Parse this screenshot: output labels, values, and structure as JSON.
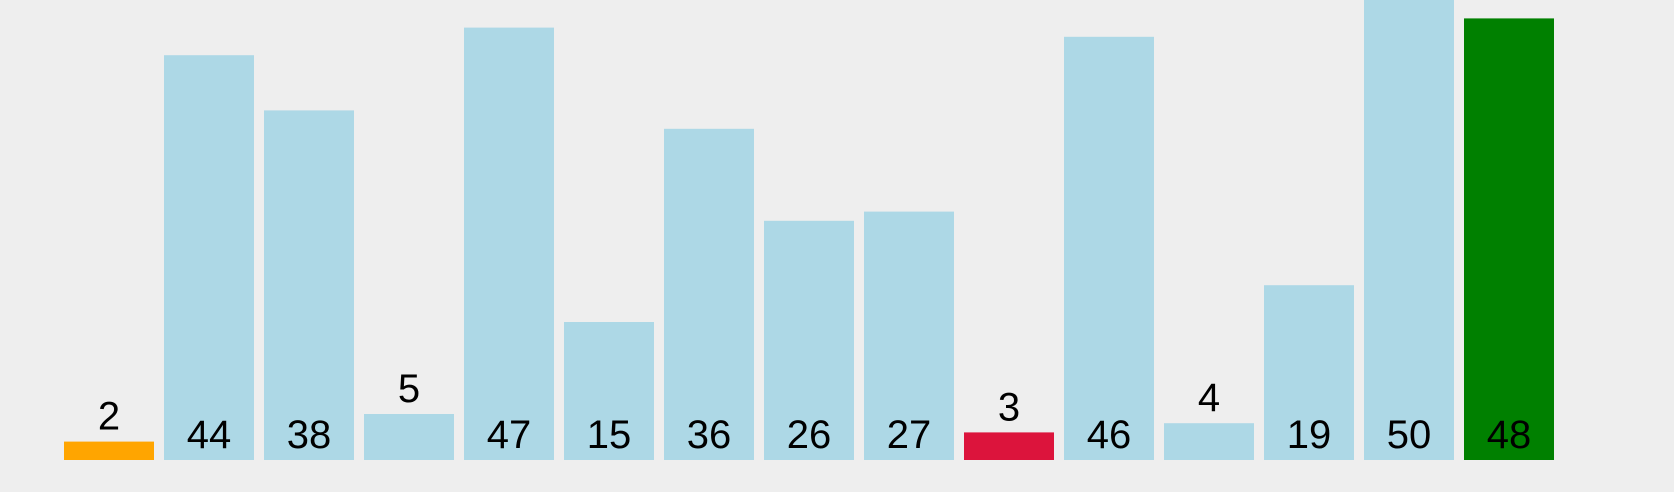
{
  "chart_data": {
    "type": "bar",
    "values": [
      2,
      44,
      38,
      5,
      47,
      15,
      36,
      26,
      27,
      3,
      46,
      4,
      19,
      50,
      48
    ],
    "labels": [
      "2",
      "44",
      "38",
      "5",
      "47",
      "15",
      "36",
      "26",
      "27",
      "3",
      "46",
      "4",
      "19",
      "50",
      "48"
    ],
    "bar_colors": [
      "#ffa500",
      "#add8e6",
      "#add8e6",
      "#add8e6",
      "#add8e6",
      "#add8e6",
      "#add8e6",
      "#add8e6",
      "#add8e6",
      "#dc143c",
      "#add8e6",
      "#add8e6",
      "#add8e6",
      "#add8e6",
      "#008000"
    ],
    "ylim": [
      0,
      50
    ],
    "grid": false,
    "legend": "none",
    "title": "",
    "xlabel": "",
    "ylabel": ""
  },
  "colors": {
    "background": "#eeeeee",
    "default_bar": "#add8e6",
    "highlight_orange": "#ffa500",
    "highlight_red": "#dc143c",
    "highlight_green": "#008000",
    "label": "#000000"
  }
}
